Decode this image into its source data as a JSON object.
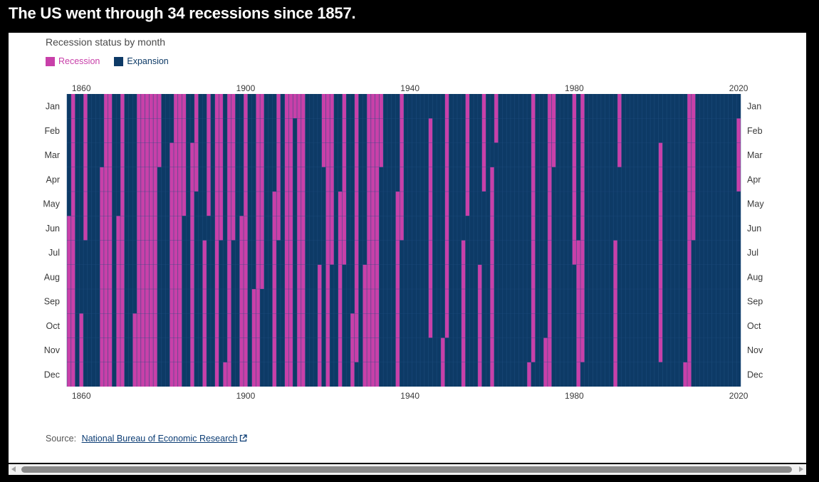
{
  "headline": "The US went through 34 recessions since 1857.",
  "colors": {
    "recession": "#c840a9",
    "expansion": "#0d3a66",
    "grid": "#1f4f80"
  },
  "chart_data": {
    "type": "heatmap",
    "title": "Recession status by month",
    "legend": [
      {
        "key": "recession",
        "label": "Recession"
      },
      {
        "key": "expansion",
        "label": "Expansion"
      }
    ],
    "legend_position": "top-left",
    "x_ticks": [
      1860,
      1900,
      1940,
      1980,
      2020
    ],
    "y_labels": [
      "Jan",
      "Feb",
      "Mar",
      "Apr",
      "May",
      "Jun",
      "Jul",
      "Aug",
      "Sep",
      "Oct",
      "Nov",
      "Dec"
    ],
    "xlim": [
      1857,
      2020
    ],
    "recessions": [
      {
        "peak": "1857-06",
        "trough": "1858-12"
      },
      {
        "peak": "1860-10",
        "trough": "1861-06"
      },
      {
        "peak": "1865-04",
        "trough": "1867-12"
      },
      {
        "peak": "1869-06",
        "trough": "1870-12"
      },
      {
        "peak": "1873-10",
        "trough": "1879-03"
      },
      {
        "peak": "1882-03",
        "trough": "1885-05"
      },
      {
        "peak": "1887-03",
        "trough": "1888-04"
      },
      {
        "peak": "1890-07",
        "trough": "1891-05"
      },
      {
        "peak": "1893-01",
        "trough": "1894-06"
      },
      {
        "peak": "1895-12",
        "trough": "1897-06"
      },
      {
        "peak": "1899-06",
        "trough": "1900-12"
      },
      {
        "peak": "1902-09",
        "trough": "1904-08"
      },
      {
        "peak": "1907-05",
        "trough": "1908-06"
      },
      {
        "peak": "1910-01",
        "trough": "1912-01"
      },
      {
        "peak": "1913-01",
        "trough": "1914-12"
      },
      {
        "peak": "1918-08",
        "trough": "1919-03"
      },
      {
        "peak": "1920-01",
        "trough": "1921-07"
      },
      {
        "peak": "1923-05",
        "trough": "1924-07"
      },
      {
        "peak": "1926-10",
        "trough": "1927-11"
      },
      {
        "peak": "1929-08",
        "trough": "1933-03"
      },
      {
        "peak": "1937-05",
        "trough": "1938-06"
      },
      {
        "peak": "1945-02",
        "trough": "1945-10"
      },
      {
        "peak": "1948-11",
        "trough": "1949-10"
      },
      {
        "peak": "1953-07",
        "trough": "1954-05"
      },
      {
        "peak": "1957-08",
        "trough": "1958-04"
      },
      {
        "peak": "1960-04",
        "trough": "1961-02"
      },
      {
        "peak": "1969-12",
        "trough": "1970-11"
      },
      {
        "peak": "1973-11",
        "trough": "1975-03"
      },
      {
        "peak": "1980-01",
        "trough": "1980-07"
      },
      {
        "peak": "1981-07",
        "trough": "1982-11"
      },
      {
        "peak": "1990-07",
        "trough": "1991-03"
      },
      {
        "peak": "2001-03",
        "trough": "2001-11"
      },
      {
        "peak": "2007-12",
        "trough": "2009-06"
      },
      {
        "peak": "2020-02",
        "trough": "2020-04"
      }
    ]
  },
  "source": {
    "label": "Source:",
    "link_text": "National Bureau of Economic Research",
    "link_icon": "external-link-icon"
  },
  "scrollbar": {
    "left_icon": "arrow-left-icon",
    "right_icon": "arrow-right-icon"
  }
}
